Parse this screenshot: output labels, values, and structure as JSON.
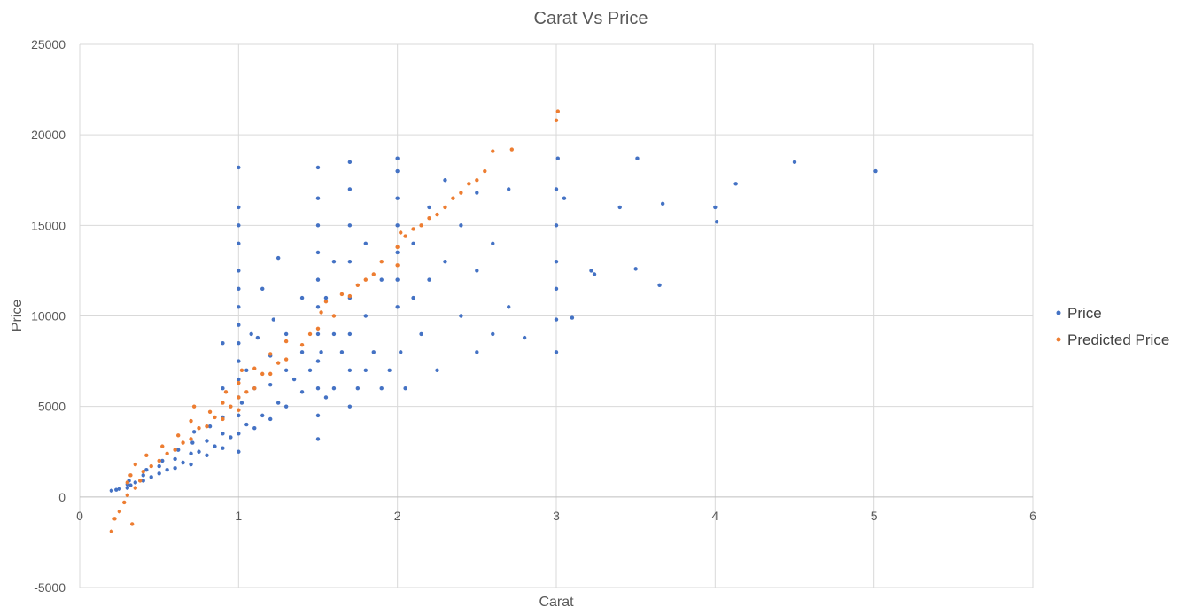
{
  "chart_data": {
    "type": "scatter",
    "title": "Carat Vs Price",
    "xlabel": "Carat",
    "ylabel": "Price",
    "xlim": [
      0,
      6
    ],
    "ylim": [
      -5000,
      25000
    ],
    "x_ticks": [
      0,
      1,
      2,
      3,
      4,
      5,
      6
    ],
    "y_ticks": [
      -5000,
      0,
      5000,
      10000,
      15000,
      20000,
      25000
    ],
    "grid": true,
    "legend_position": "right",
    "series": [
      {
        "name": "Price",
        "color": "#4472C4",
        "points": [
          [
            0.2,
            350
          ],
          [
            0.23,
            400
          ],
          [
            0.25,
            450
          ],
          [
            0.3,
            500
          ],
          [
            0.3,
            700
          ],
          [
            0.31,
            900
          ],
          [
            0.32,
            650
          ],
          [
            0.35,
            800
          ],
          [
            0.4,
            900
          ],
          [
            0.4,
            1200
          ],
          [
            0.42,
            1500
          ],
          [
            0.45,
            1100
          ],
          [
            0.5,
            1300
          ],
          [
            0.5,
            1700
          ],
          [
            0.52,
            2000
          ],
          [
            0.55,
            1500
          ],
          [
            0.6,
            1600
          ],
          [
            0.6,
            2100
          ],
          [
            0.62,
            2600
          ],
          [
            0.65,
            1900
          ],
          [
            0.7,
            1800
          ],
          [
            0.7,
            2400
          ],
          [
            0.71,
            3000
          ],
          [
            0.72,
            3600
          ],
          [
            0.75,
            2500
          ],
          [
            0.8,
            2300
          ],
          [
            0.8,
            3100
          ],
          [
            0.82,
            3900
          ],
          [
            0.85,
            2800
          ],
          [
            0.9,
            2700
          ],
          [
            0.9,
            3500
          ],
          [
            0.9,
            4400
          ],
          [
            0.9,
            6000
          ],
          [
            0.9,
            8500
          ],
          [
            0.95,
            3300
          ],
          [
            1.0,
            2500
          ],
          [
            1.0,
            3500
          ],
          [
            1.0,
            4500
          ],
          [
            1.0,
            5500
          ],
          [
            1.0,
            6500
          ],
          [
            1.0,
            7500
          ],
          [
            1.0,
            8500
          ],
          [
            1.0,
            9500
          ],
          [
            1.0,
            10500
          ],
          [
            1.0,
            11500
          ],
          [
            1.0,
            12500
          ],
          [
            1.0,
            14000
          ],
          [
            1.0,
            15000
          ],
          [
            1.0,
            16000
          ],
          [
            1.0,
            18200
          ],
          [
            1.02,
            5200
          ],
          [
            1.05,
            4000
          ],
          [
            1.05,
            7000
          ],
          [
            1.08,
            9000
          ],
          [
            1.1,
            3800
          ],
          [
            1.1,
            6000
          ],
          [
            1.12,
            8800
          ],
          [
            1.15,
            4500
          ],
          [
            1.15,
            11500
          ],
          [
            1.2,
            4300
          ],
          [
            1.2,
            6200
          ],
          [
            1.2,
            7800
          ],
          [
            1.22,
            9800
          ],
          [
            1.25,
            5200
          ],
          [
            1.25,
            13200
          ],
          [
            1.3,
            5000
          ],
          [
            1.3,
            7000
          ],
          [
            1.3,
            9000
          ],
          [
            1.35,
            6500
          ],
          [
            1.4,
            5800
          ],
          [
            1.4,
            8000
          ],
          [
            1.4,
            11000
          ],
          [
            1.45,
            7000
          ],
          [
            1.5,
            3200
          ],
          [
            1.5,
            4500
          ],
          [
            1.5,
            6000
          ],
          [
            1.5,
            7500
          ],
          [
            1.5,
            9000
          ],
          [
            1.5,
            10500
          ],
          [
            1.5,
            12000
          ],
          [
            1.5,
            13500
          ],
          [
            1.5,
            15000
          ],
          [
            1.5,
            16500
          ],
          [
            1.5,
            18200
          ],
          [
            1.52,
            8000
          ],
          [
            1.55,
            5500
          ],
          [
            1.55,
            11000
          ],
          [
            1.6,
            6000
          ],
          [
            1.6,
            9000
          ],
          [
            1.6,
            13000
          ],
          [
            1.65,
            8000
          ],
          [
            1.7,
            5000
          ],
          [
            1.7,
            7000
          ],
          [
            1.7,
            9000
          ],
          [
            1.7,
            11000
          ],
          [
            1.7,
            13000
          ],
          [
            1.7,
            15000
          ],
          [
            1.7,
            17000
          ],
          [
            1.7,
            18500
          ],
          [
            1.75,
            6000
          ],
          [
            1.8,
            7000
          ],
          [
            1.8,
            10000
          ],
          [
            1.8,
            14000
          ],
          [
            1.85,
            8000
          ],
          [
            1.9,
            6000
          ],
          [
            1.9,
            12000
          ],
          [
            1.95,
            7000
          ],
          [
            2.0,
            10500
          ],
          [
            2.0,
            12000
          ],
          [
            2.0,
            13500
          ],
          [
            2.0,
            15000
          ],
          [
            2.0,
            16500
          ],
          [
            2.0,
            18000
          ],
          [
            2.0,
            18700
          ],
          [
            2.02,
            8000
          ],
          [
            2.05,
            6000
          ],
          [
            2.1,
            11000
          ],
          [
            2.1,
            14000
          ],
          [
            2.15,
            9000
          ],
          [
            2.2,
            12000
          ],
          [
            2.2,
            16000
          ],
          [
            2.25,
            7000
          ],
          [
            2.3,
            13000
          ],
          [
            2.3,
            17500
          ],
          [
            2.4,
            10000
          ],
          [
            2.4,
            15000
          ],
          [
            2.5,
            8000
          ],
          [
            2.5,
            12500
          ],
          [
            2.5,
            16800
          ],
          [
            2.6,
            9000
          ],
          [
            2.6,
            14000
          ],
          [
            2.7,
            10500
          ],
          [
            2.7,
            17000
          ],
          [
            2.8,
            8800
          ],
          [
            3.0,
            8000
          ],
          [
            3.0,
            9800
          ],
          [
            3.0,
            11500
          ],
          [
            3.0,
            13000
          ],
          [
            3.0,
            15000
          ],
          [
            3.0,
            17000
          ],
          [
            3.01,
            18700
          ],
          [
            3.05,
            16500
          ],
          [
            3.1,
            9900
          ],
          [
            3.22,
            12500
          ],
          [
            3.24,
            12300
          ],
          [
            3.4,
            16000
          ],
          [
            3.5,
            12600
          ],
          [
            3.51,
            18700
          ],
          [
            3.65,
            11700
          ],
          [
            3.67,
            16200
          ],
          [
            4.0,
            16000
          ],
          [
            4.01,
            15200
          ],
          [
            4.13,
            17300
          ],
          [
            4.5,
            18500
          ],
          [
            5.01,
            18000
          ]
        ]
      },
      {
        "name": "Predicted Price",
        "color": "#ED7D31",
        "points": [
          [
            0.2,
            -1900
          ],
          [
            0.22,
            -1200
          ],
          [
            0.25,
            -800
          ],
          [
            0.28,
            -300
          ],
          [
            0.3,
            100
          ],
          [
            0.3,
            800
          ],
          [
            0.32,
            1200
          ],
          [
            0.33,
            -1500
          ],
          [
            0.35,
            500
          ],
          [
            0.35,
            1800
          ],
          [
            0.38,
            900
          ],
          [
            0.4,
            1400
          ],
          [
            0.42,
            2300
          ],
          [
            0.45,
            1700
          ],
          [
            0.5,
            2000
          ],
          [
            0.52,
            2800
          ],
          [
            0.55,
            2400
          ],
          [
            0.6,
            2600
          ],
          [
            0.62,
            3400
          ],
          [
            0.65,
            3000
          ],
          [
            0.7,
            3200
          ],
          [
            0.7,
            4200
          ],
          [
            0.72,
            5000
          ],
          [
            0.75,
            3800
          ],
          [
            0.8,
            3900
          ],
          [
            0.82,
            4700
          ],
          [
            0.85,
            4400
          ],
          [
            0.9,
            4300
          ],
          [
            0.9,
            5200
          ],
          [
            0.92,
            5800
          ],
          [
            0.95,
            5000
          ],
          [
            1.0,
            4800
          ],
          [
            1.0,
            5500
          ],
          [
            1.0,
            6300
          ],
          [
            1.02,
            7000
          ],
          [
            1.05,
            5800
          ],
          [
            1.1,
            6000
          ],
          [
            1.1,
            7100
          ],
          [
            1.15,
            6800
          ],
          [
            1.2,
            6800
          ],
          [
            1.2,
            7900
          ],
          [
            1.25,
            7400
          ],
          [
            1.3,
            7600
          ],
          [
            1.3,
            8600
          ],
          [
            1.4,
            8400
          ],
          [
            1.45,
            9000
          ],
          [
            1.5,
            9300
          ],
          [
            1.52,
            10200
          ],
          [
            1.55,
            10800
          ],
          [
            1.6,
            10000
          ],
          [
            1.65,
            11200
          ],
          [
            1.7,
            11100
          ],
          [
            1.75,
            11700
          ],
          [
            1.8,
            12000
          ],
          [
            1.85,
            12300
          ],
          [
            1.9,
            13000
          ],
          [
            2.0,
            12800
          ],
          [
            2.0,
            13800
          ],
          [
            2.02,
            14600
          ],
          [
            2.05,
            14400
          ],
          [
            2.1,
            14800
          ],
          [
            2.15,
            15000
          ],
          [
            2.2,
            15400
          ],
          [
            2.25,
            15600
          ],
          [
            2.3,
            16000
          ],
          [
            2.35,
            16500
          ],
          [
            2.4,
            16800
          ],
          [
            2.45,
            17300
          ],
          [
            2.5,
            17500
          ],
          [
            2.55,
            18000
          ],
          [
            2.6,
            19100
          ],
          [
            2.72,
            19200
          ],
          [
            3.0,
            20800
          ],
          [
            3.01,
            21300
          ]
        ]
      }
    ]
  }
}
